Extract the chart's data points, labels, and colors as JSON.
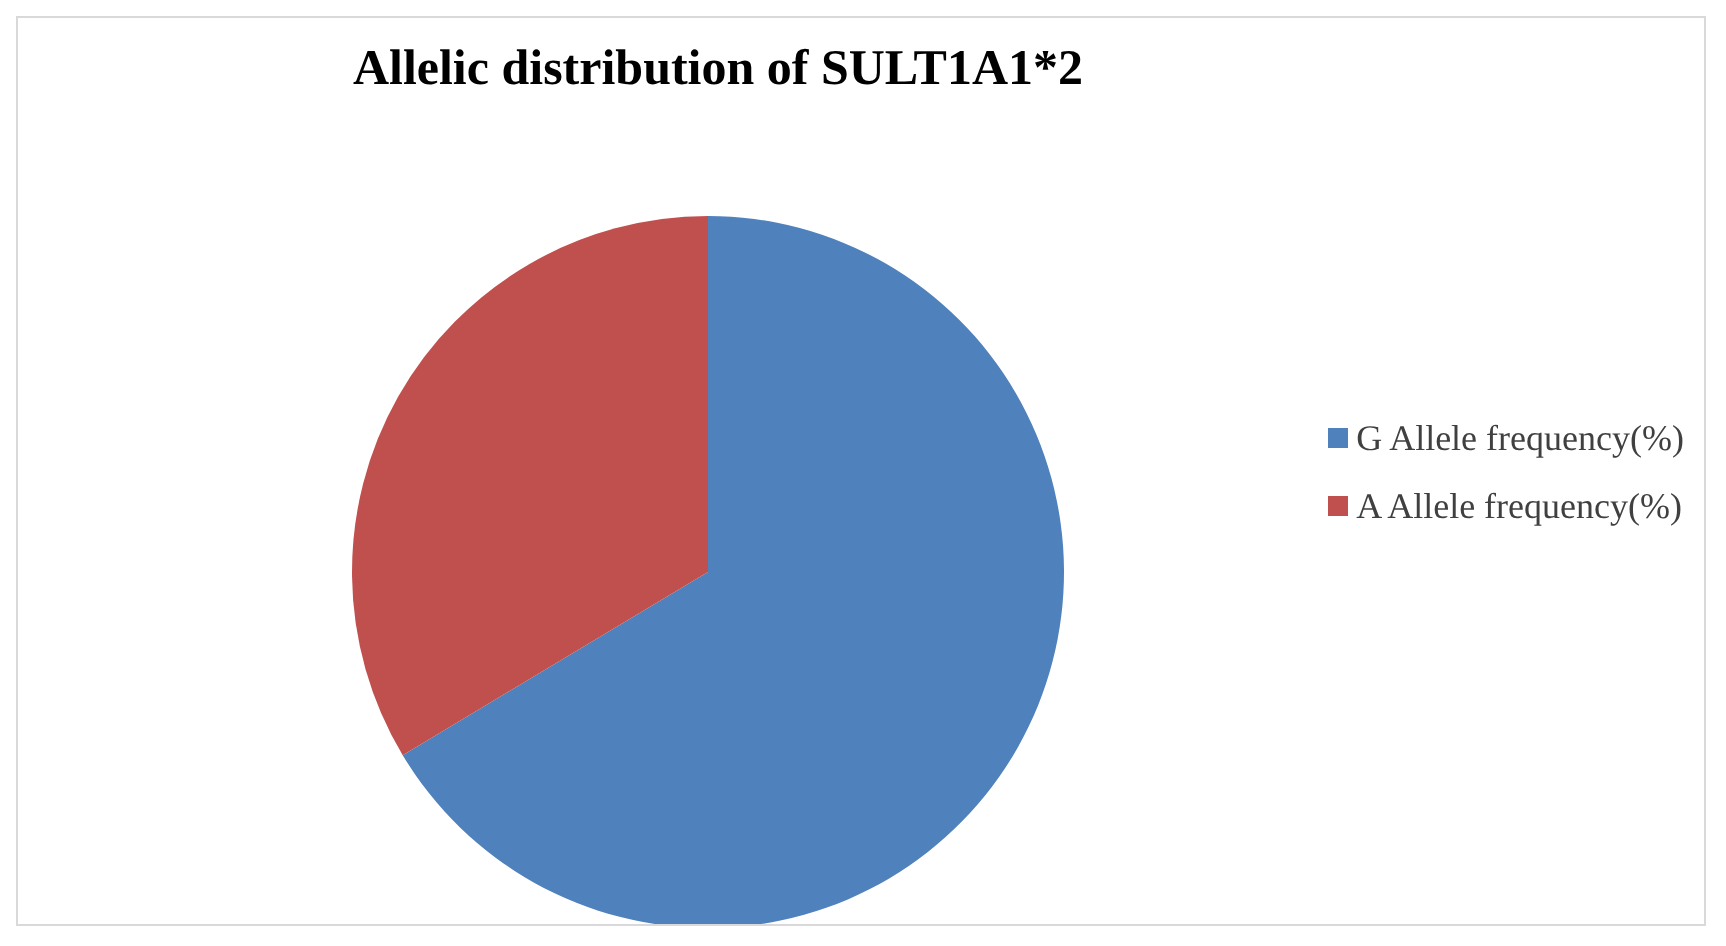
{
  "chart_data": {
    "type": "pie",
    "title": "Allelic distribution of SULT1A1*2",
    "categories": [
      "G Allele frequency(%)",
      "A Allele frequency(%)"
    ],
    "values": [
      66.4,
      33.6
    ],
    "colors": [
      "#4f81bd",
      "#c0504d"
    ],
    "legend": "right"
  }
}
